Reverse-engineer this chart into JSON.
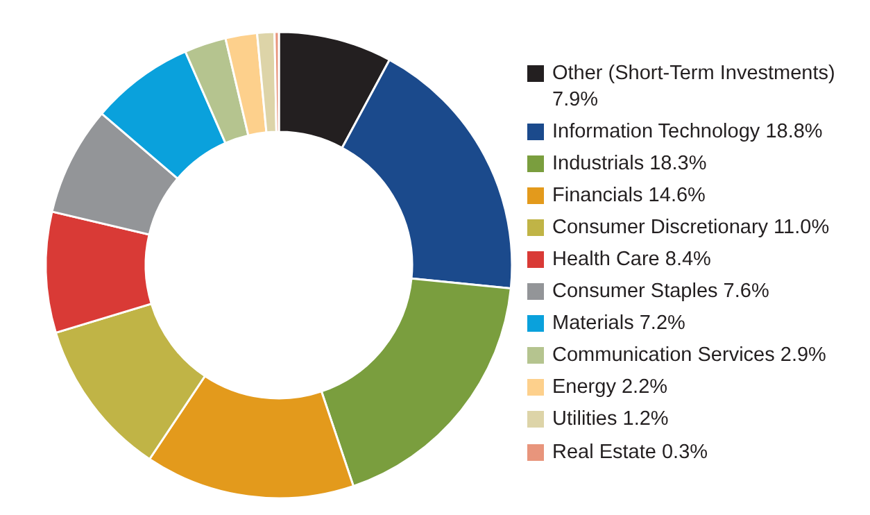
{
  "chart_data": {
    "type": "donut",
    "categories": [
      "Other (Short-Term Investments)",
      "Information Technology",
      "Industrials",
      "Financials",
      "Consumer Discretionary",
      "Health Care",
      "Consumer Staples",
      "Materials",
      "Communication Services",
      "Energy",
      "Utilities",
      "Real Estate"
    ],
    "values": [
      7.9,
      18.8,
      18.3,
      14.6,
      11.0,
      8.4,
      7.6,
      7.2,
      2.9,
      2.2,
      1.2,
      0.3
    ],
    "value_labels": [
      "7.9%",
      "18.8%",
      "18.3%",
      "14.6%",
      "11.0%",
      "8.4%",
      "7.6%",
      "7.2%",
      "2.9%",
      "2.2%",
      "1.2%",
      "0.3%"
    ],
    "colors": [
      "#231f20",
      "#1b4a8c",
      "#7a9e3e",
      "#e39a1c",
      "#c0b446",
      "#d93a36",
      "#939598",
      "#0aa1dc",
      "#b5c48f",
      "#fdd08c",
      "#ddd4a8",
      "#e8957c"
    ],
    "legend": "right"
  }
}
